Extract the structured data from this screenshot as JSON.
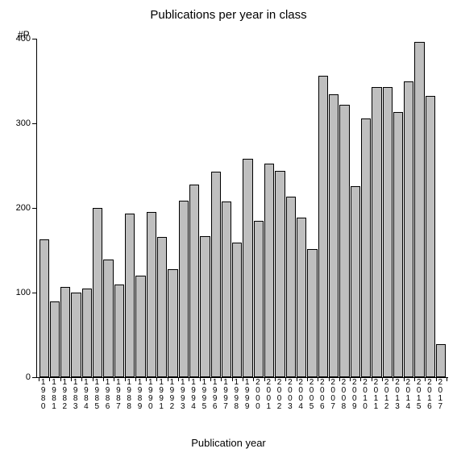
{
  "chart": {
    "type": "bar",
    "title": "Publications per year in class",
    "title_fontsize": 15,
    "y_unit_label": "#P",
    "x_axis_label": "Publication year",
    "label_fontsize": 13,
    "tick_fontsize": 11,
    "x_tick_fontsize": 10,
    "ylim": [
      0,
      400
    ],
    "ytick_step": 100,
    "yticks": [
      0,
      100,
      200,
      300,
      400
    ],
    "background_color": "#ffffff",
    "bar_fill": "#bfbfbf",
    "bar_border": "#000000",
    "axis_color": "#000000",
    "categories": [
      "1980",
      "1981",
      "1982",
      "1983",
      "1984",
      "1985",
      "1986",
      "1987",
      "1988",
      "1989",
      "1990",
      "1991",
      "1992",
      "1993",
      "1994",
      "1995",
      "1996",
      "1997",
      "1998",
      "1999",
      "2000",
      "2001",
      "2002",
      "2003",
      "2004",
      "2005",
      "2006",
      "2007",
      "2008",
      "2009",
      "2010",
      "2011",
      "2012",
      "2013",
      "2014",
      "2015",
      "2016",
      "2017"
    ],
    "values": [
      163,
      90,
      107,
      100,
      105,
      200,
      139,
      110,
      193,
      120,
      195,
      166,
      128,
      209,
      228,
      167,
      243,
      208,
      159,
      258,
      185,
      252,
      244,
      213,
      189,
      151,
      356,
      334,
      322,
      226,
      306,
      343,
      343,
      313,
      350,
      396,
      332,
      39
    ]
  }
}
